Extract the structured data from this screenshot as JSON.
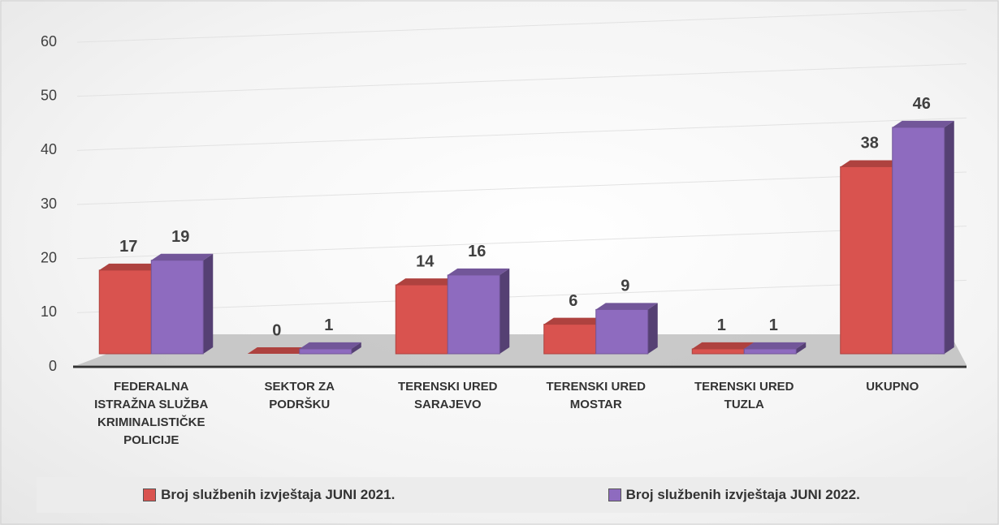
{
  "chart_data": {
    "type": "bar3d",
    "categories": [
      "FEDERALNA ISTRAŽNA SLUŽBA KRIMINALISTIČKE POLICIJE",
      "SEKTOR ZA PODRŠKU",
      "TERENSKI URED SARAJEVO",
      "TERENSKI URED MOSTAR",
      "TERENSKI URED TUZLA",
      "UKUPNO"
    ],
    "series": [
      {
        "name": "Broj službenih izvještaja JUNI 2021.",
        "color": "#d9534f",
        "values": [
          17,
          0,
          14,
          6,
          1,
          38
        ]
      },
      {
        "name": "Broj službenih izvještaja JUNI  2022.",
        "color": "#8e6bbf",
        "values": [
          19,
          1,
          16,
          9,
          1,
          46
        ]
      }
    ],
    "ylim": [
      0,
      60
    ],
    "yticks": [
      0,
      10,
      20,
      30,
      40,
      50,
      60
    ],
    "grid": true,
    "legend": "bottom"
  }
}
